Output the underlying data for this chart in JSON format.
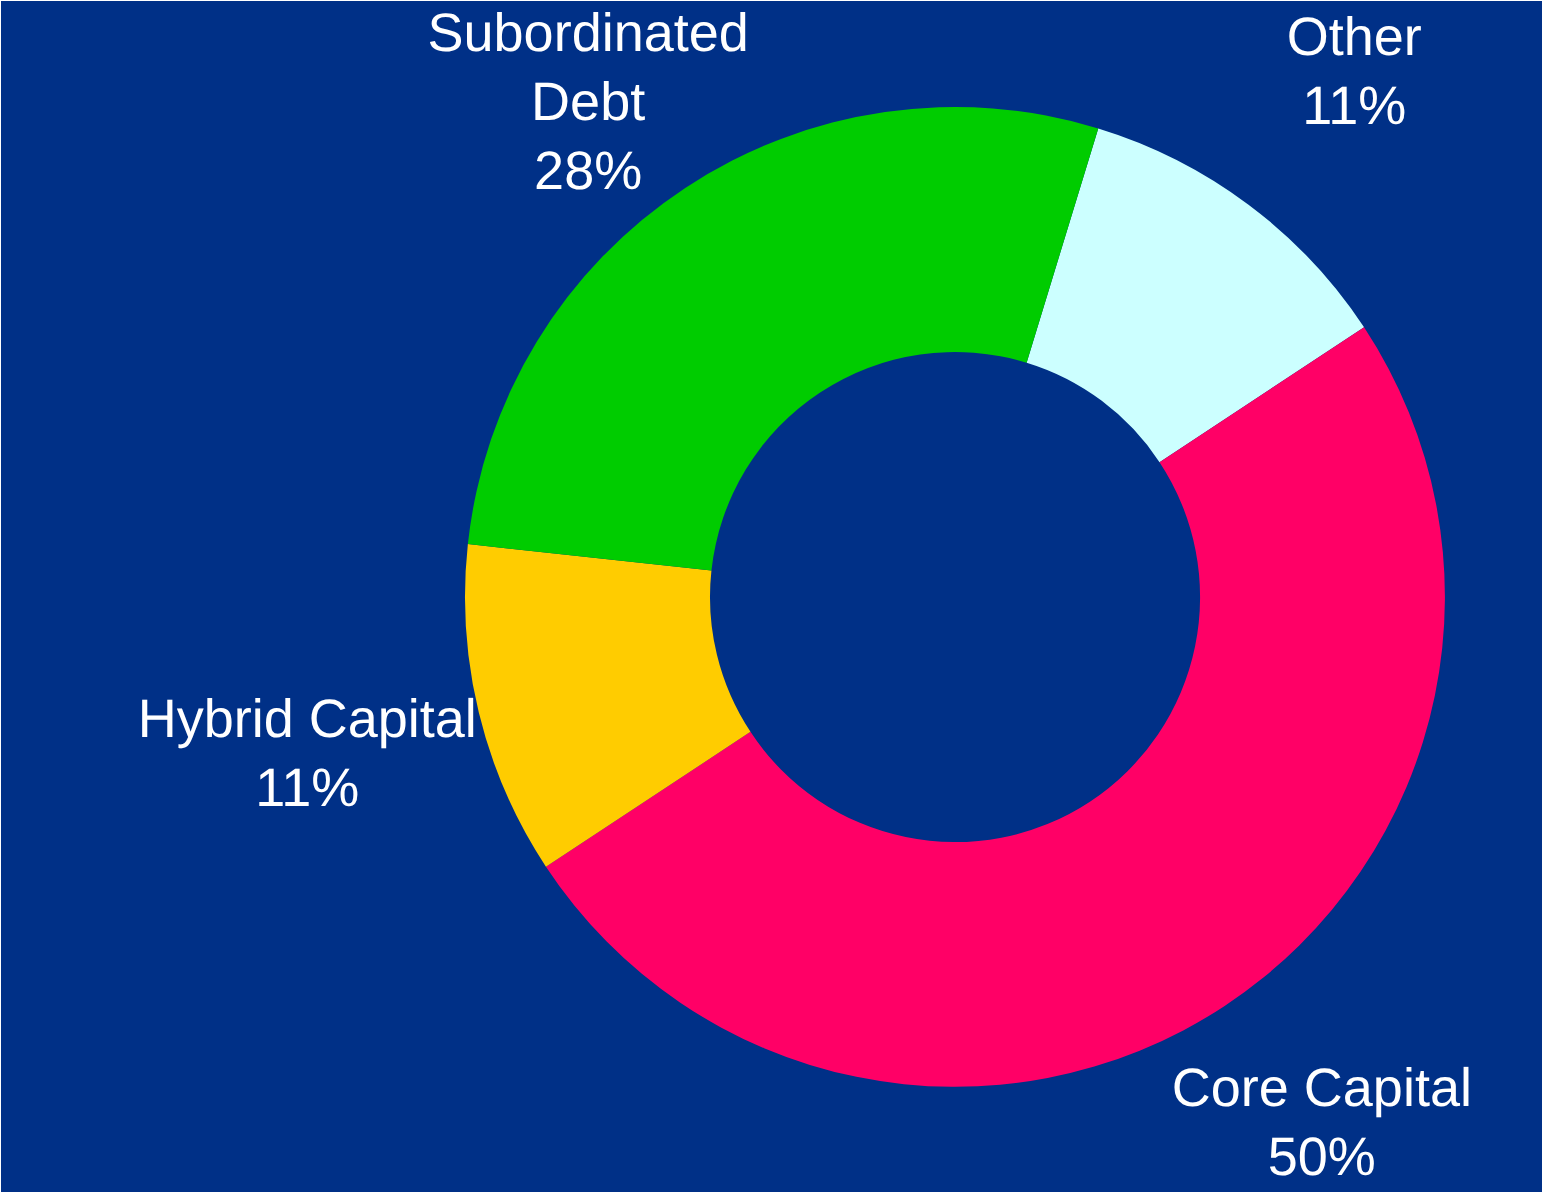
{
  "chart_data": {
    "type": "donut",
    "categories": [
      "Other",
      "Core Capital",
      "Hybrid Capital",
      "Subordinated\nDebt"
    ],
    "values": [
      11,
      50,
      11,
      28
    ],
    "value_labels": [
      "11%",
      "50%",
      "11%",
      "28%"
    ],
    "colors": [
      "#ccffff",
      "#ff0066",
      "#ffcc00",
      "#00cc00"
    ]
  }
}
